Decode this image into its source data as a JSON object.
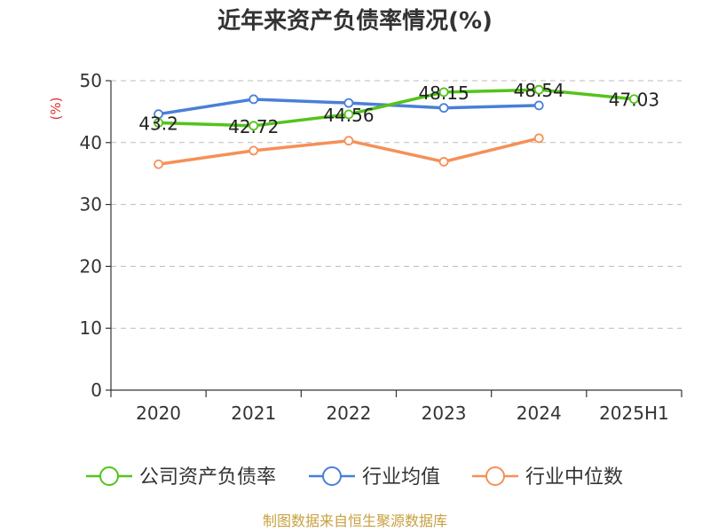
{
  "chart_data": {
    "type": "line",
    "title": "近年来资产负债率情况(%)",
    "ylabel": "(%)",
    "categories": [
      "2020",
      "2021",
      "2022",
      "2023",
      "2024",
      "2025H1"
    ],
    "ylim": [
      0,
      50
    ],
    "yticks": [
      0,
      10,
      20,
      30,
      40,
      50
    ],
    "grid": "horizontal-dashed",
    "legend_position": "bottom",
    "series": [
      {
        "name": "公司资产负债率",
        "color": "#52c41a",
        "values": [
          43.2,
          42.72,
          44.56,
          48.15,
          48.54,
          47.03
        ],
        "labels": [
          "43.2",
          "42.72",
          "44.56",
          "48.15",
          "48.54",
          "47.03"
        ]
      },
      {
        "name": "行业均值",
        "color": "#4a7fd8",
        "values": [
          44.6,
          47.0,
          46.4,
          45.6,
          46.0,
          null
        ]
      },
      {
        "name": "行业中位数",
        "color": "#f59057",
        "values": [
          36.5,
          38.7,
          40.3,
          36.9,
          40.7,
          null
        ]
      }
    ],
    "source": "制图数据来自恒生聚源数据库",
    "source_color": "#c8a040",
    "ylabel_color": "#e03030"
  }
}
